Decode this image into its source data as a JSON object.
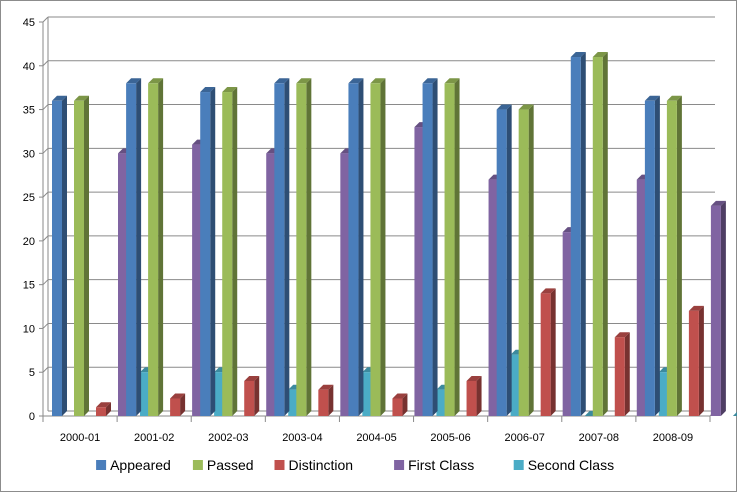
{
  "chart_data": {
    "type": "bar",
    "categories": [
      "2000-01",
      "2001-02",
      "2002-03",
      "2003-04",
      "2004-05",
      "2005-06",
      "2006-07",
      "2007-08",
      "2008-09"
    ],
    "series": [
      {
        "name": "Appeared",
        "color": "#4a7ebb",
        "values": [
          36,
          38,
          37,
          38,
          38,
          38,
          35,
          41,
          36
        ]
      },
      {
        "name": "Passed",
        "color": "#9bbb59",
        "values": [
          36,
          38,
          37,
          38,
          38,
          38,
          35,
          41,
          36
        ]
      },
      {
        "name": "Distinction",
        "color": "#c0504d",
        "values": [
          1,
          2,
          4,
          3,
          2,
          4,
          14,
          9,
          12
        ]
      },
      {
        "name": "First Class",
        "color": "#8064a2",
        "values": [
          30,
          31,
          30,
          30,
          33,
          27,
          21,
          27,
          24
        ]
      },
      {
        "name": "Second Class",
        "color": "#4bacc6",
        "values": [
          5,
          5,
          3,
          5,
          3,
          7,
          0,
          5,
          0
        ]
      }
    ],
    "ylim": [
      0,
      45
    ],
    "yticks": [
      "0",
      "5",
      "10",
      "15",
      "20",
      "25",
      "30",
      "35",
      "40",
      "45"
    ],
    "grid": true,
    "legend_position": "bottom"
  }
}
